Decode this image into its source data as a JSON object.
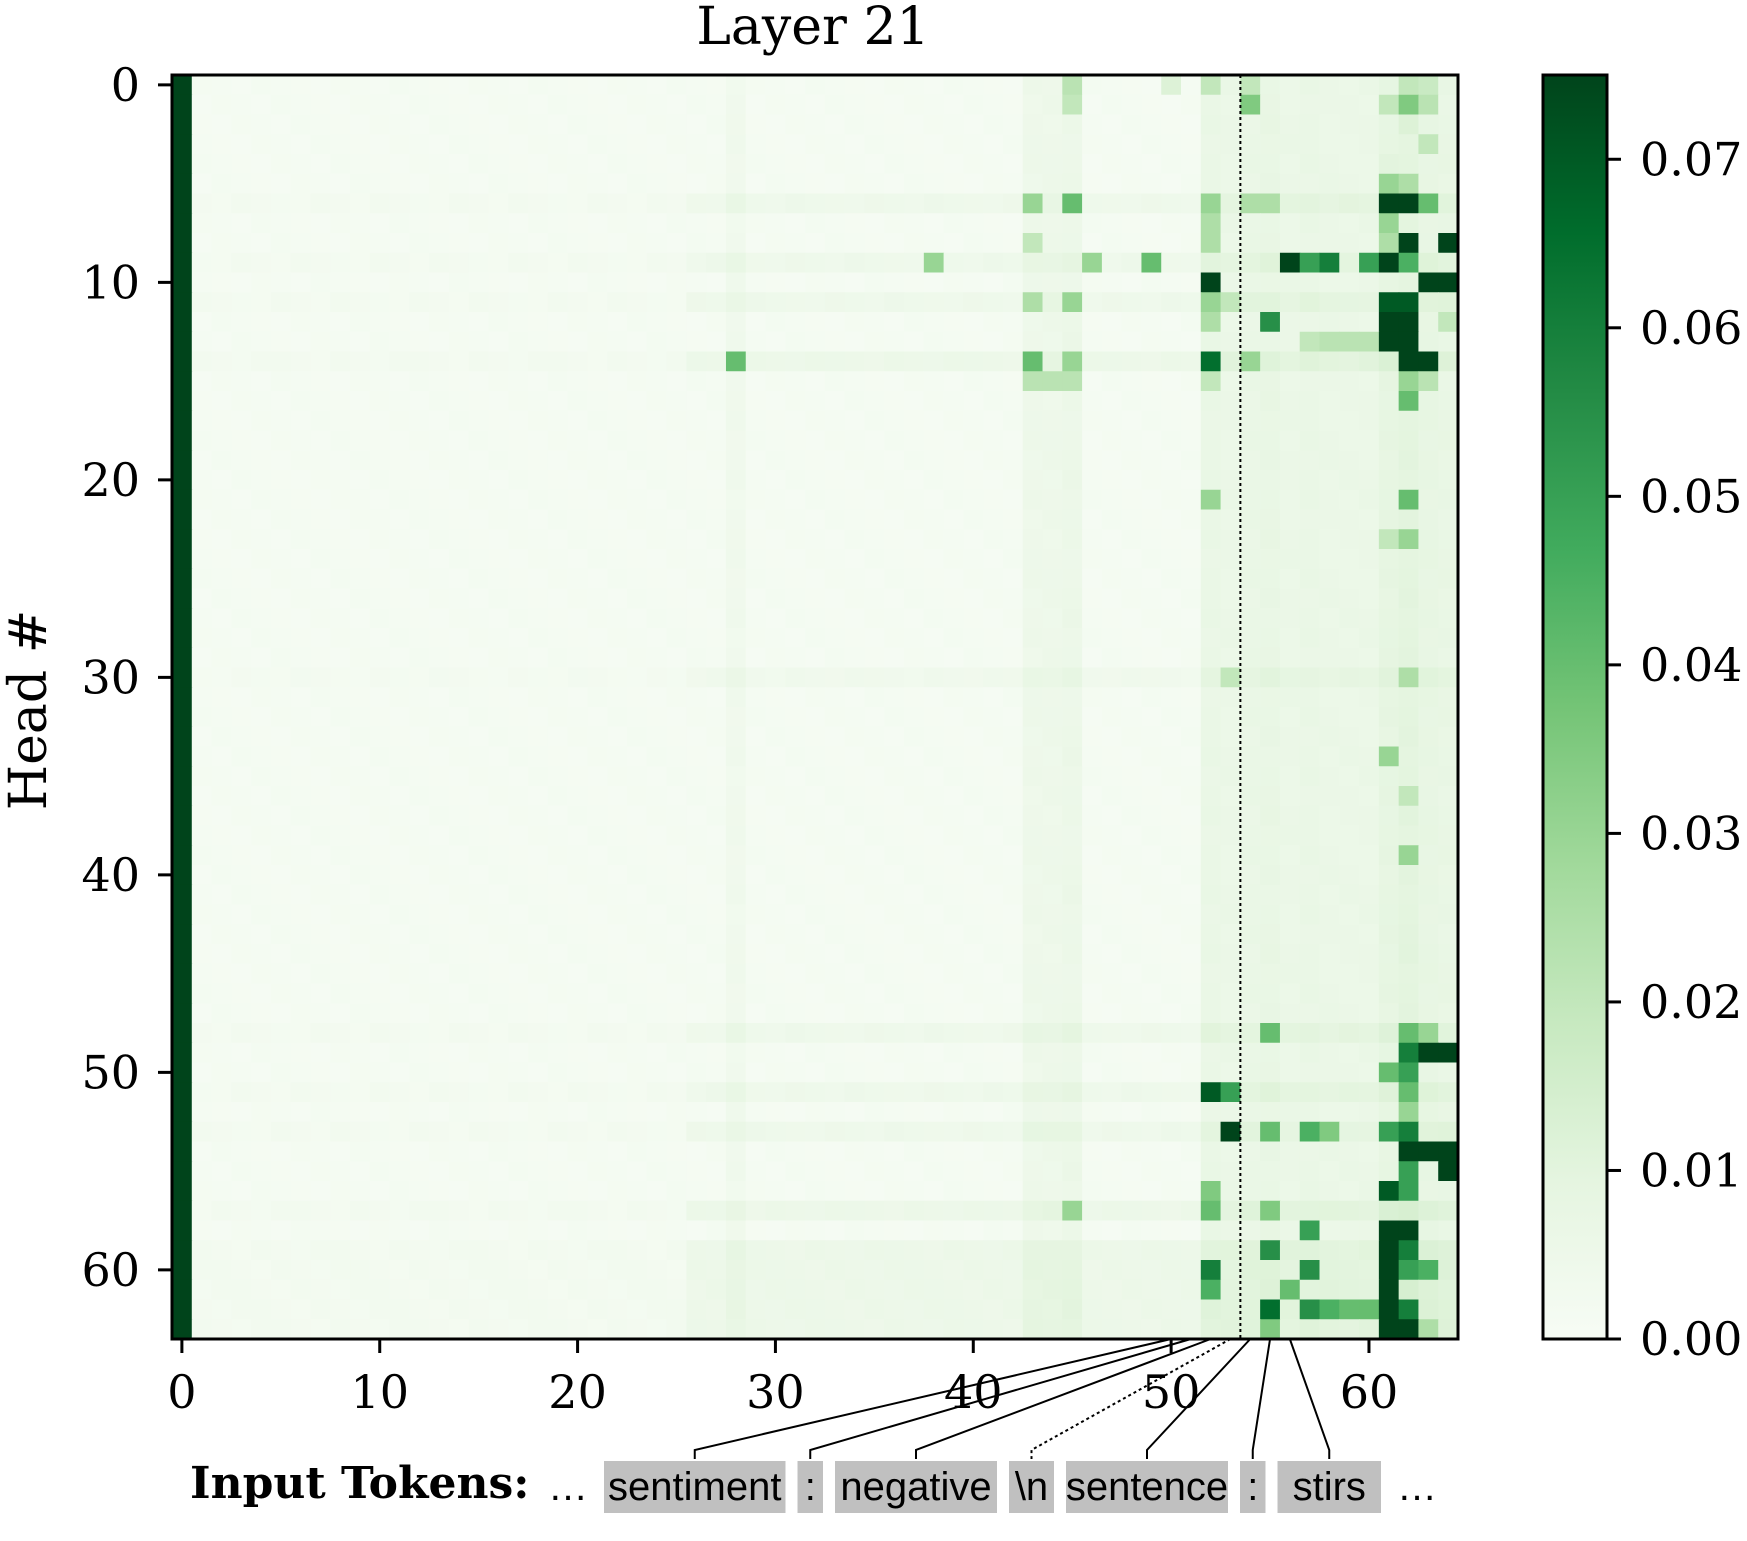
{
  "chart_data": {
    "type": "heatmap",
    "title": "Layer 21",
    "ylabel": "Head #",
    "xlabel": "",
    "n_rows": 64,
    "n_cols": 65,
    "x_ticks": [
      "0",
      "10",
      "20",
      "30",
      "40",
      "50",
      "60"
    ],
    "x_tick_values": [
      0,
      10,
      20,
      30,
      40,
      50,
      60
    ],
    "y_ticks": [
      "0",
      "10",
      "20",
      "30",
      "40",
      "50",
      "60"
    ],
    "y_tick_values": [
      0,
      10,
      20,
      30,
      40,
      50,
      60
    ],
    "colorbar": {
      "min": 0.0,
      "max": 0.075,
      "ticks": [
        "0.00",
        "0.01",
        "0.02",
        "0.03",
        "0.04",
        "0.05",
        "0.06",
        "0.07"
      ],
      "tick_values": [
        0.0,
        0.01,
        0.02,
        0.03,
        0.04,
        0.05,
        0.06,
        0.07
      ],
      "colormap": "Greens",
      "colors": [
        "#f7fcf5",
        "#e5f5e0",
        "#c7e9c0",
        "#a1d99b",
        "#74c476",
        "#41ab5d",
        "#238b45",
        "#006d2c",
        "#00441b"
      ]
    },
    "column_0_value": 0.075,
    "divider_column": 53.5,
    "strong_cells": [
      {
        "row": 0,
        "col": 45,
        "value": 0.022
      },
      {
        "row": 0,
        "col": 50,
        "value": 0.012
      },
      {
        "row": 0,
        "col": 52,
        "value": 0.02
      },
      {
        "row": 0,
        "col": 54,
        "value": 0.02
      },
      {
        "row": 0,
        "col": 62,
        "value": 0.02
      },
      {
        "row": 0,
        "col": 63,
        "value": 0.018
      },
      {
        "row": 1,
        "col": 45,
        "value": 0.02
      },
      {
        "row": 1,
        "col": 54,
        "value": 0.035
      },
      {
        "row": 1,
        "col": 61,
        "value": 0.02
      },
      {
        "row": 1,
        "col": 62,
        "value": 0.035
      },
      {
        "row": 1,
        "col": 63,
        "value": 0.022
      },
      {
        "row": 2,
        "col": 62,
        "value": 0.012
      },
      {
        "row": 3,
        "col": 63,
        "value": 0.02
      },
      {
        "row": 4,
        "col": 61,
        "value": 0.01
      },
      {
        "row": 5,
        "col": 61,
        "value": 0.03
      },
      {
        "row": 5,
        "col": 62,
        "value": 0.025
      },
      {
        "row": 6,
        "col": 43,
        "value": 0.03
      },
      {
        "row": 6,
        "col": 45,
        "value": 0.04
      },
      {
        "row": 6,
        "col": 52,
        "value": 0.03
      },
      {
        "row": 6,
        "col": 54,
        "value": 0.025
      },
      {
        "row": 6,
        "col": 55,
        "value": 0.025
      },
      {
        "row": 6,
        "col": 61,
        "value": 0.075
      },
      {
        "row": 6,
        "col": 62,
        "value": 0.075
      },
      {
        "row": 6,
        "col": 63,
        "value": 0.04
      },
      {
        "row": 7,
        "col": 52,
        "value": 0.025
      },
      {
        "row": 7,
        "col": 61,
        "value": 0.03
      },
      {
        "row": 8,
        "col": 43,
        "value": 0.02
      },
      {
        "row": 8,
        "col": 52,
        "value": 0.025
      },
      {
        "row": 8,
        "col": 61,
        "value": 0.025
      },
      {
        "row": 8,
        "col": 62,
        "value": 0.075
      },
      {
        "row": 8,
        "col": 64,
        "value": 0.075
      },
      {
        "row": 9,
        "col": 38,
        "value": 0.03
      },
      {
        "row": 9,
        "col": 46,
        "value": 0.03
      },
      {
        "row": 9,
        "col": 49,
        "value": 0.04
      },
      {
        "row": 9,
        "col": 56,
        "value": 0.075
      },
      {
        "row": 9,
        "col": 57,
        "value": 0.05
      },
      {
        "row": 9,
        "col": 58,
        "value": 0.06
      },
      {
        "row": 9,
        "col": 60,
        "value": 0.05
      },
      {
        "row": 9,
        "col": 61,
        "value": 0.075
      },
      {
        "row": 9,
        "col": 62,
        "value": 0.045
      },
      {
        "row": 10,
        "col": 52,
        "value": 0.075
      },
      {
        "row": 10,
        "col": 63,
        "value": 0.075
      },
      {
        "row": 10,
        "col": 64,
        "value": 0.075
      },
      {
        "row": 11,
        "col": 43,
        "value": 0.025
      },
      {
        "row": 11,
        "col": 45,
        "value": 0.03
      },
      {
        "row": 11,
        "col": 52,
        "value": 0.03
      },
      {
        "row": 11,
        "col": 53,
        "value": 0.02
      },
      {
        "row": 11,
        "col": 61,
        "value": 0.07
      },
      {
        "row": 11,
        "col": 62,
        "value": 0.07
      },
      {
        "row": 12,
        "col": 52,
        "value": 0.025
      },
      {
        "row": 12,
        "col": 55,
        "value": 0.055
      },
      {
        "row": 12,
        "col": 61,
        "value": 0.075
      },
      {
        "row": 12,
        "col": 62,
        "value": 0.075
      },
      {
        "row": 12,
        "col": 64,
        "value": 0.02
      },
      {
        "row": 13,
        "col": 57,
        "value": 0.02
      },
      {
        "row": 13,
        "col": 58,
        "value": 0.022
      },
      {
        "row": 13,
        "col": 59,
        "value": 0.022
      },
      {
        "row": 13,
        "col": 60,
        "value": 0.022
      },
      {
        "row": 13,
        "col": 61,
        "value": 0.075
      },
      {
        "row": 13,
        "col": 62,
        "value": 0.075
      },
      {
        "row": 14,
        "col": 28,
        "value": 0.04
      },
      {
        "row": 14,
        "col": 43,
        "value": 0.04
      },
      {
        "row": 14,
        "col": 45,
        "value": 0.03
      },
      {
        "row": 14,
        "col": 52,
        "value": 0.065
      },
      {
        "row": 14,
        "col": 54,
        "value": 0.03
      },
      {
        "row": 14,
        "col": 62,
        "value": 0.075
      },
      {
        "row": 14,
        "col": 63,
        "value": 0.075
      },
      {
        "row": 15,
        "col": 43,
        "value": 0.022
      },
      {
        "row": 15,
        "col": 44,
        "value": 0.022
      },
      {
        "row": 15,
        "col": 45,
        "value": 0.022
      },
      {
        "row": 15,
        "col": 52,
        "value": 0.02
      },
      {
        "row": 15,
        "col": 62,
        "value": 0.03
      },
      {
        "row": 15,
        "col": 63,
        "value": 0.022
      },
      {
        "row": 16,
        "col": 62,
        "value": 0.04
      },
      {
        "row": 21,
        "col": 52,
        "value": 0.03
      },
      {
        "row": 21,
        "col": 62,
        "value": 0.04
      },
      {
        "row": 23,
        "col": 61,
        "value": 0.02
      },
      {
        "row": 23,
        "col": 62,
        "value": 0.03
      },
      {
        "row": 30,
        "col": 62,
        "value": 0.025
      },
      {
        "row": 30,
        "col": 53,
        "value": 0.02
      },
      {
        "row": 34,
        "col": 61,
        "value": 0.03
      },
      {
        "row": 36,
        "col": 62,
        "value": 0.02
      },
      {
        "row": 39,
        "col": 62,
        "value": 0.03
      },
      {
        "row": 48,
        "col": 55,
        "value": 0.04
      },
      {
        "row": 48,
        "col": 62,
        "value": 0.04
      },
      {
        "row": 48,
        "col": 63,
        "value": 0.03
      },
      {
        "row": 49,
        "col": 62,
        "value": 0.06
      },
      {
        "row": 49,
        "col": 63,
        "value": 0.075
      },
      {
        "row": 49,
        "col": 64,
        "value": 0.075
      },
      {
        "row": 50,
        "col": 61,
        "value": 0.04
      },
      {
        "row": 50,
        "col": 62,
        "value": 0.05
      },
      {
        "row": 51,
        "col": 52,
        "value": 0.07
      },
      {
        "row": 51,
        "col": 53,
        "value": 0.05
      },
      {
        "row": 51,
        "col": 62,
        "value": 0.04
      },
      {
        "row": 52,
        "col": 62,
        "value": 0.03
      },
      {
        "row": 53,
        "col": 53,
        "value": 0.075
      },
      {
        "row": 53,
        "col": 55,
        "value": 0.04
      },
      {
        "row": 53,
        "col": 57,
        "value": 0.045
      },
      {
        "row": 53,
        "col": 58,
        "value": 0.035
      },
      {
        "row": 53,
        "col": 61,
        "value": 0.05
      },
      {
        "row": 53,
        "col": 62,
        "value": 0.06
      },
      {
        "row": 54,
        "col": 62,
        "value": 0.075
      },
      {
        "row": 54,
        "col": 63,
        "value": 0.075
      },
      {
        "row": 54,
        "col": 64,
        "value": 0.075
      },
      {
        "row": 55,
        "col": 64,
        "value": 0.075
      },
      {
        "row": 55,
        "col": 62,
        "value": 0.05
      },
      {
        "row": 56,
        "col": 61,
        "value": 0.07
      },
      {
        "row": 56,
        "col": 62,
        "value": 0.05
      },
      {
        "row": 56,
        "col": 52,
        "value": 0.035
      },
      {
        "row": 57,
        "col": 45,
        "value": 0.03
      },
      {
        "row": 57,
        "col": 52,
        "value": 0.04
      },
      {
        "row": 57,
        "col": 55,
        "value": 0.035
      },
      {
        "row": 58,
        "col": 61,
        "value": 0.075
      },
      {
        "row": 58,
        "col": 62,
        "value": 0.075
      },
      {
        "row": 58,
        "col": 57,
        "value": 0.05
      },
      {
        "row": 59,
        "col": 55,
        "value": 0.055
      },
      {
        "row": 59,
        "col": 61,
        "value": 0.075
      },
      {
        "row": 59,
        "col": 62,
        "value": 0.06
      },
      {
        "row": 60,
        "col": 52,
        "value": 0.06
      },
      {
        "row": 60,
        "col": 57,
        "value": 0.055
      },
      {
        "row": 60,
        "col": 61,
        "value": 0.075
      },
      {
        "row": 60,
        "col": 62,
        "value": 0.05
      },
      {
        "row": 60,
        "col": 63,
        "value": 0.045
      },
      {
        "row": 61,
        "col": 52,
        "value": 0.045
      },
      {
        "row": 61,
        "col": 56,
        "value": 0.04
      },
      {
        "row": 61,
        "col": 61,
        "value": 0.075
      },
      {
        "row": 62,
        "col": 55,
        "value": 0.065
      },
      {
        "row": 62,
        "col": 57,
        "value": 0.055
      },
      {
        "row": 62,
        "col": 58,
        "value": 0.045
      },
      {
        "row": 62,
        "col": 59,
        "value": 0.04
      },
      {
        "row": 62,
        "col": 60,
        "value": 0.04
      },
      {
        "row": 62,
        "col": 61,
        "value": 0.075
      },
      {
        "row": 62,
        "col": 62,
        "value": 0.06
      },
      {
        "row": 63,
        "col": 55,
        "value": 0.035
      },
      {
        "row": 63,
        "col": 61,
        "value": 0.075
      },
      {
        "row": 63,
        "col": 62,
        "value": 0.075
      },
      {
        "row": 63,
        "col": 63,
        "value": 0.025
      }
    ],
    "hot_columns": [
      {
        "col": 28,
        "value": 0.004
      },
      {
        "col": 43,
        "value": 0.006
      },
      {
        "col": 44,
        "value": 0.006
      },
      {
        "col": 45,
        "value": 0.007
      },
      {
        "col": 52,
        "value": 0.009
      },
      {
        "col": 53,
        "value": 0.008
      },
      {
        "col": 54,
        "value": 0.009
      },
      {
        "col": 55,
        "value": 0.01
      },
      {
        "col": 56,
        "value": 0.008
      },
      {
        "col": 57,
        "value": 0.009
      },
      {
        "col": 58,
        "value": 0.008
      },
      {
        "col": 59,
        "value": 0.008
      },
      {
        "col": 60,
        "value": 0.008
      },
      {
        "col": 61,
        "value": 0.012
      },
      {
        "col": 62,
        "value": 0.014
      },
      {
        "col": 63,
        "value": 0.011
      },
      {
        "col": 64,
        "value": 0.01
      }
    ],
    "hot_rows": [
      {
        "row": 6,
        "value": 0.004
      },
      {
        "row": 9,
        "value": 0.004
      },
      {
        "row": 11,
        "value": 0.004
      },
      {
        "row": 14,
        "value": 0.005
      },
      {
        "row": 30,
        "value": 0.003
      },
      {
        "row": 48,
        "value": 0.004
      },
      {
        "row": 51,
        "value": 0.004
      },
      {
        "row": 53,
        "value": 0.004
      },
      {
        "row": 57,
        "value": 0.005
      },
      {
        "row": 59,
        "value": 0.005
      },
      {
        "row": 60,
        "value": 0.005
      },
      {
        "row": 61,
        "value": 0.005
      },
      {
        "row": 62,
        "value": 0.005
      },
      {
        "row": 63,
        "value": 0.005
      }
    ]
  },
  "input_tokens": {
    "label": "Input Tokens:",
    "ellipsis_start": "…",
    "ellipsis_end": "…",
    "tokens": [
      {
        "text": "sentiment",
        "col": 50
      },
      {
        "text": ":",
        "col": 51
      },
      {
        "text": "negative",
        "col": 52
      },
      {
        "text": "\\n",
        "col": 53
      },
      {
        "text": "sentence",
        "col": 54
      },
      {
        "text": ":",
        "col": 55
      },
      {
        "text": "stirs",
        "col": 56
      }
    ]
  }
}
